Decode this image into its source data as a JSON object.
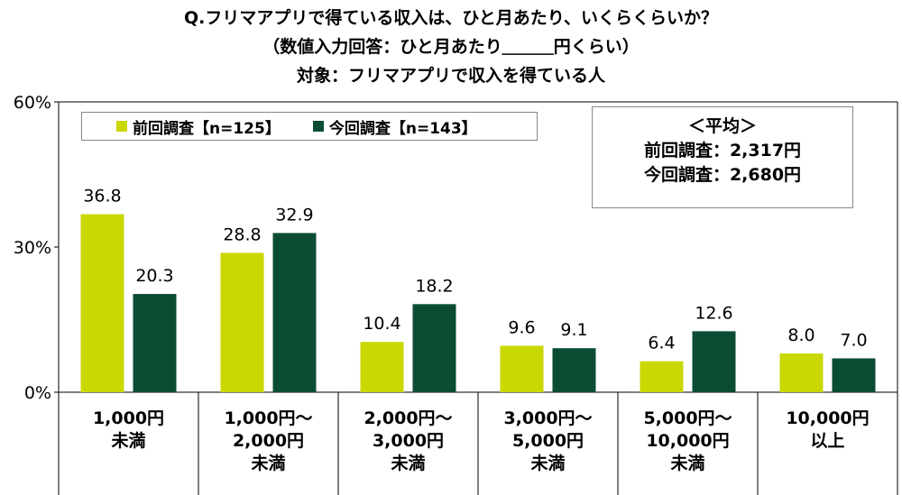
{
  "title_lines": [
    "Q.フリマアプリで得ている収入は、ひと月あたり、いくらくらいか？",
    "（数値入力回答：ひと月あたり＿＿＿円くらい）",
    "対象：フリマアプリで収入を得ている人"
  ],
  "legend": [
    {
      "label": "前回調査【n=125】",
      "color": "#c9d800"
    },
    {
      "label": "今回調査【n=143】",
      "color": "#0b4d33"
    }
  ],
  "average": {
    "heading": "＜平均＞",
    "previous": "前回調査：2,317円",
    "current": "今回調査：2,680円"
  },
  "chart_data": {
    "type": "bar",
    "categories": [
      [
        "1,000円",
        "未満"
      ],
      [
        "1,000円～",
        "2,000円",
        "未満"
      ],
      [
        "2,000円～",
        "3,000円",
        "未満"
      ],
      [
        "3,000円～",
        "5,000円",
        "未満"
      ],
      [
        "5,000円～",
        "10,000円",
        "未満"
      ],
      [
        "10,000円",
        "以上"
      ]
    ],
    "series": [
      {
        "name": "前回調査【n=125】",
        "values": [
          36.8,
          28.8,
          10.4,
          9.6,
          6.4,
          8.0
        ]
      },
      {
        "name": "今回調査【n=143】",
        "values": [
          20.3,
          32.9,
          18.2,
          9.1,
          12.6,
          7.0
        ]
      }
    ],
    "value_labels": [
      [
        "36.8",
        "28.8",
        "10.4",
        "9.6",
        "6.4",
        "8.0"
      ],
      [
        "20.3",
        "32.9",
        "18.2",
        "9.1",
        "12.6",
        "7.0"
      ]
    ],
    "y_ticks": [
      "0%",
      "30%",
      "60%"
    ],
    "ylim": [
      0,
      60
    ],
    "colors": [
      "#c9d800",
      "#0b4d33"
    ]
  }
}
